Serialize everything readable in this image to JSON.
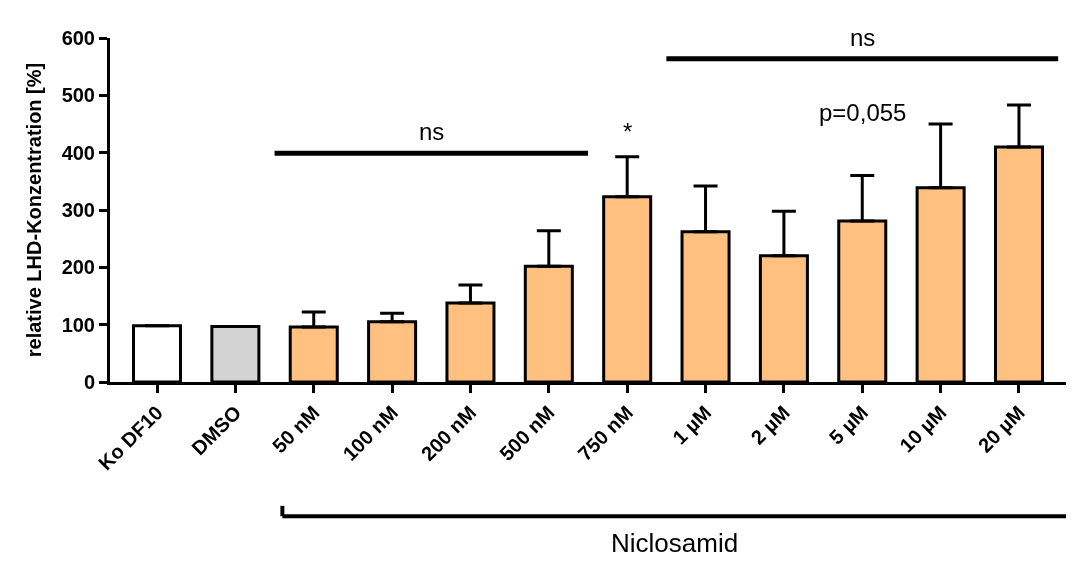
{
  "chart_data": {
    "type": "bar",
    "ylabel": "relative LHD-Konzentration [%]",
    "categories": [
      "Ko DF10",
      "DMSO",
      "50 nM",
      "100 nM",
      "200 nM",
      "500 nM",
      "750 nM",
      "1 µM",
      "2 µM",
      "5 µM",
      "10 µM",
      "20 µM"
    ],
    "values": [
      98,
      97,
      96,
      105,
      138,
      202,
      323,
      262,
      220,
      281,
      339,
      410
    ],
    "colors": [
      "#ffffff",
      "#d3d3d3",
      "#ffc080",
      "#ffc080",
      "#ffc080",
      "#ffc080",
      "#ffc080",
      "#ffc080",
      "#ffc080",
      "#ffc080",
      "#ffc080",
      "#ffc080"
    ],
    "errors": [
      null,
      null,
      [
        96,
        122
      ],
      [
        105,
        120
      ],
      [
        138,
        169
      ],
      [
        202,
        264
      ],
      [
        323,
        393
      ],
      [
        262,
        342
      ],
      [
        220,
        298
      ],
      [
        281,
        360
      ],
      [
        339,
        450
      ],
      [
        410,
        483
      ]
    ],
    "ylim": [
      0,
      600
    ],
    "yticks": [
      0,
      100,
      200,
      300,
      400,
      500,
      600
    ],
    "annotations": [
      "ns",
      "*",
      "ns",
      "p=0,055",
      "Niclosamid"
    ]
  }
}
